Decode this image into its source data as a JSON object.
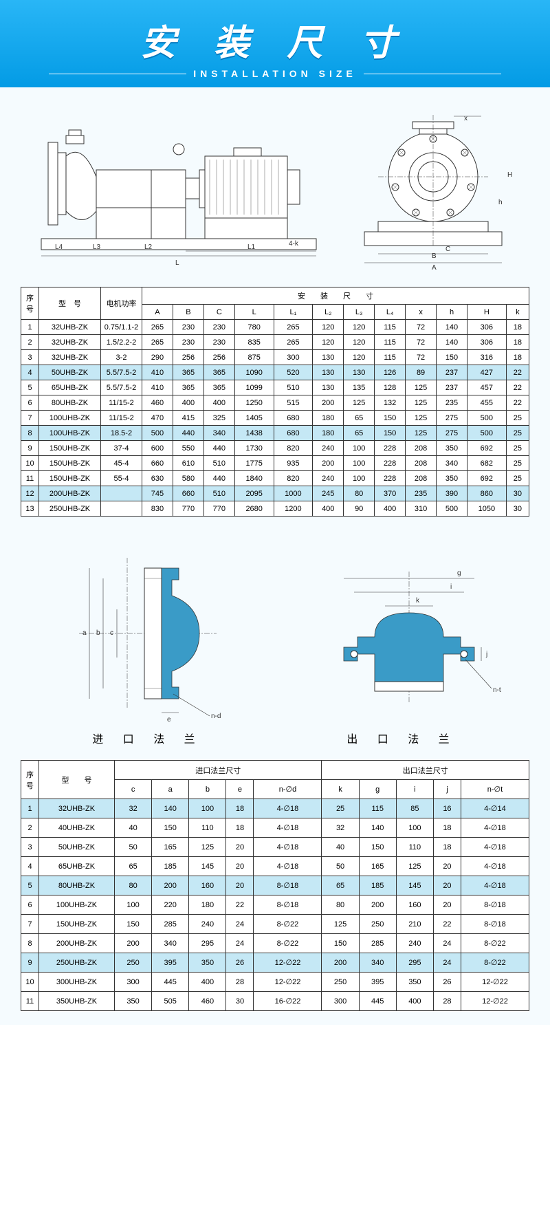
{
  "header": {
    "title_cn": "安 装 尺 寸",
    "title_en": "INSTALLATION SIZE"
  },
  "table1": {
    "header_row1": [
      "序号",
      "型　号",
      "电机功率",
      "安　　装　　尺　　寸"
    ],
    "header_row2": [
      "A",
      "B",
      "C",
      "L",
      "L₁",
      "L₂",
      "L₃",
      "L₄",
      "x",
      "h",
      "H",
      "k"
    ],
    "rows": [
      {
        "n": "1",
        "m": "32UHB-ZK",
        "p": "0.75/1.1-2",
        "d": [
          "265",
          "230",
          "230",
          "780",
          "265",
          "120",
          "120",
          "115",
          "72",
          "140",
          "306",
          "18"
        ]
      },
      {
        "n": "2",
        "m": "32UHB-ZK",
        "p": "1.5/2.2-2",
        "d": [
          "265",
          "230",
          "230",
          "835",
          "265",
          "120",
          "120",
          "115",
          "72",
          "140",
          "306",
          "18"
        ]
      },
      {
        "n": "3",
        "m": "32UHB-ZK",
        "p": "3-2",
        "d": [
          "290",
          "256",
          "256",
          "875",
          "300",
          "130",
          "120",
          "115",
          "72",
          "150",
          "316",
          "18"
        ]
      },
      {
        "n": "4",
        "m": "50UHB-ZK",
        "p": "5.5/7.5-2",
        "d": [
          "410",
          "365",
          "365",
          "1090",
          "520",
          "130",
          "130",
          "126",
          "89",
          "237",
          "427",
          "22"
        ],
        "hl": true
      },
      {
        "n": "5",
        "m": "65UHB-ZK",
        "p": "5.5/7.5-2",
        "d": [
          "410",
          "365",
          "365",
          "1099",
          "510",
          "130",
          "135",
          "128",
          "125",
          "237",
          "457",
          "22"
        ]
      },
      {
        "n": "6",
        "m": "80UHB-ZK",
        "p": "11/15-2",
        "d": [
          "460",
          "400",
          "400",
          "1250",
          "515",
          "200",
          "125",
          "132",
          "125",
          "235",
          "455",
          "22"
        ]
      },
      {
        "n": "7",
        "m": "100UHB-ZK",
        "p": "11/15-2",
        "d": [
          "470",
          "415",
          "325",
          "1405",
          "680",
          "180",
          "65",
          "150",
          "125",
          "275",
          "500",
          "25"
        ]
      },
      {
        "n": "8",
        "m": "100UHB-ZK",
        "p": "18.5-2",
        "d": [
          "500",
          "440",
          "340",
          "1438",
          "680",
          "180",
          "65",
          "150",
          "125",
          "275",
          "500",
          "25"
        ],
        "hl": true
      },
      {
        "n": "9",
        "m": "150UHB-ZK",
        "p": "37-4",
        "d": [
          "600",
          "550",
          "440",
          "1730",
          "820",
          "240",
          "100",
          "228",
          "208",
          "350",
          "692",
          "25"
        ]
      },
      {
        "n": "10",
        "m": "150UHB-ZK",
        "p": "45-4",
        "d": [
          "660",
          "610",
          "510",
          "1775",
          "935",
          "200",
          "100",
          "228",
          "208",
          "340",
          "682",
          "25"
        ]
      },
      {
        "n": "11",
        "m": "150UHB-ZK",
        "p": "55-4",
        "d": [
          "630",
          "580",
          "440",
          "1840",
          "820",
          "240",
          "100",
          "228",
          "208",
          "350",
          "692",
          "25"
        ]
      },
      {
        "n": "12",
        "m": "200UHB-ZK",
        "p": "",
        "d": [
          "745",
          "660",
          "510",
          "2095",
          "1000",
          "245",
          "80",
          "370",
          "235",
          "390",
          "860",
          "30"
        ],
        "hl": true
      },
      {
        "n": "13",
        "m": "250UHB-ZK",
        "p": "",
        "d": [
          "830",
          "770",
          "770",
          "2680",
          "1200",
          "400",
          "90",
          "400",
          "310",
          "500",
          "1050",
          "30"
        ]
      }
    ]
  },
  "flange_labels": {
    "inlet": "进 口 法 兰",
    "outlet": "出 口 法 兰"
  },
  "table2": {
    "header_row1": [
      "序号",
      "型　　号",
      "进口法兰尺寸",
      "出口法兰尺寸"
    ],
    "header_row2": [
      "c",
      "a",
      "b",
      "e",
      "n-∅d",
      "k",
      "g",
      "i",
      "j",
      "n-∅t"
    ],
    "rows": [
      {
        "n": "1",
        "m": "32UHB-ZK",
        "in": [
          "32",
          "140",
          "100",
          "18",
          "4-∅18"
        ],
        "out": [
          "25",
          "115",
          "85",
          "16",
          "4-∅14"
        ],
        "hl": true
      },
      {
        "n": "2",
        "m": "40UHB-ZK",
        "in": [
          "40",
          "150",
          "110",
          "18",
          "4-∅18"
        ],
        "out": [
          "32",
          "140",
          "100",
          "18",
          "4-∅18"
        ]
      },
      {
        "n": "3",
        "m": "50UHB-ZK",
        "in": [
          "50",
          "165",
          "125",
          "20",
          "4-∅18"
        ],
        "out": [
          "40",
          "150",
          "110",
          "18",
          "4-∅18"
        ]
      },
      {
        "n": "4",
        "m": "65UHB-ZK",
        "in": [
          "65",
          "185",
          "145",
          "20",
          "4-∅18"
        ],
        "out": [
          "50",
          "165",
          "125",
          "20",
          "4-∅18"
        ]
      },
      {
        "n": "5",
        "m": "80UHB-ZK",
        "in": [
          "80",
          "200",
          "160",
          "20",
          "8-∅18"
        ],
        "out": [
          "65",
          "185",
          "145",
          "20",
          "4-∅18"
        ],
        "hl": true
      },
      {
        "n": "6",
        "m": "100UHB-ZK",
        "in": [
          "100",
          "220",
          "180",
          "22",
          "8-∅18"
        ],
        "out": [
          "80",
          "200",
          "160",
          "20",
          "8-∅18"
        ]
      },
      {
        "n": "7",
        "m": "150UHB-ZK",
        "in": [
          "150",
          "285",
          "240",
          "24",
          "8-∅22"
        ],
        "out": [
          "125",
          "250",
          "210",
          "22",
          "8-∅18"
        ]
      },
      {
        "n": "8",
        "m": "200UHB-ZK",
        "in": [
          "200",
          "340",
          "295",
          "24",
          "8-∅22"
        ],
        "out": [
          "150",
          "285",
          "240",
          "24",
          "8-∅22"
        ]
      },
      {
        "n": "9",
        "m": "250UHB-ZK",
        "in": [
          "250",
          "395",
          "350",
          "26",
          "12-∅22"
        ],
        "out": [
          "200",
          "340",
          "295",
          "24",
          "8-∅22"
        ],
        "hl": true
      },
      {
        "n": "10",
        "m": "300UHB-ZK",
        "in": [
          "300",
          "445",
          "400",
          "28",
          "12-∅22"
        ],
        "out": [
          "250",
          "395",
          "350",
          "26",
          "12-∅22"
        ]
      },
      {
        "n": "11",
        "m": "350UHB-ZK",
        "in": [
          "350",
          "505",
          "460",
          "30",
          "16-∅22"
        ],
        "out": [
          "300",
          "445",
          "400",
          "28",
          "12-∅22"
        ]
      }
    ]
  },
  "diagram_top_labels": {
    "L": "L",
    "L1": "L1",
    "L2": "L2",
    "L3": "L3",
    "L4": "L4",
    "fourk": "4-k",
    "A": "A",
    "B": "B",
    "C": "C",
    "H": "H",
    "h": "h",
    "x": "x"
  },
  "diagram_flange_labels": {
    "a": "a",
    "b": "b",
    "c": "c",
    "e": "e",
    "nd": "n-d",
    "g": "g",
    "i": "i",
    "k": "k",
    "j": "j",
    "nt": "n-t"
  }
}
